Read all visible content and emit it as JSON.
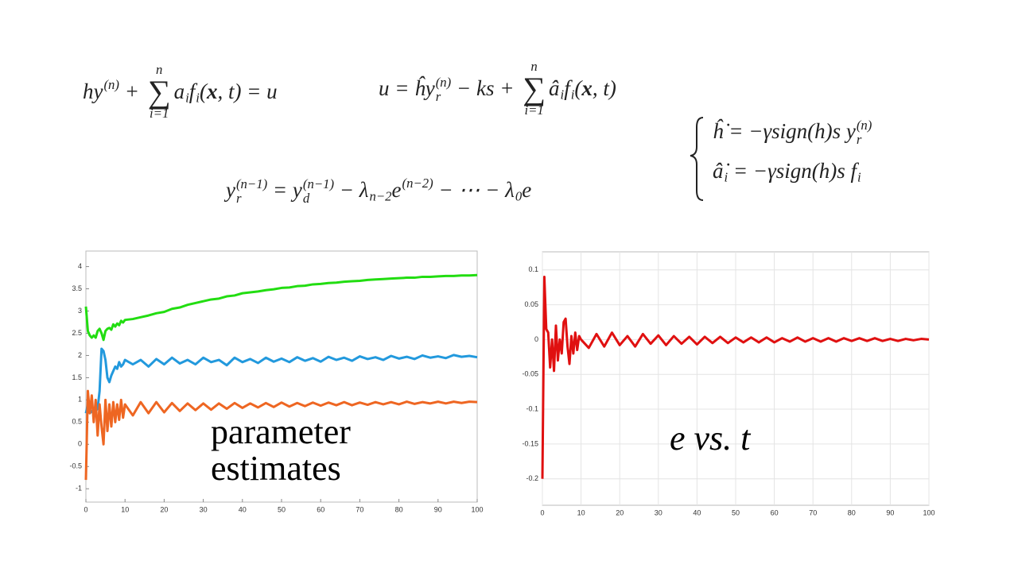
{
  "equations": [
    {
      "parts": [
        "hy",
        {
          "sup": "(n)"
        },
        " + ",
        {
          "sum": "∑",
          "above": "n",
          "below": "i=1"
        },
        "a",
        {
          "sub": "i"
        },
        "f",
        {
          "sub": "i"
        },
        "(",
        {
          "b": "x"
        },
        ", t) = u"
      ]
    },
    {
      "parts": [
        "u = ĥy",
        {
          "sup": "(n)",
          "sub": "r"
        },
        " − ks + ",
        {
          "sum": "∑",
          "above": "n",
          "below": "i=1"
        },
        "â",
        {
          "sub": "i"
        },
        "f",
        {
          "sub": "i"
        },
        "(",
        {
          "b": "x"
        },
        ", t)"
      ]
    },
    {
      "parts": [
        "y",
        {
          "sup": "(n−1)",
          "sub": "r"
        },
        " = y",
        {
          "sup": "(n−1)",
          "sub": "d"
        },
        " − λ",
        {
          "sub": "n−2"
        },
        "e",
        {
          "sup": "(n−2)"
        },
        " − ⋯ − λ",
        {
          "sub": "0"
        },
        "e"
      ]
    },
    {
      "parts": [
        "ĥ̇ = −γsign(h)s y",
        {
          "sup": "(n)",
          "sub": "r"
        }
      ]
    },
    {
      "parts": [
        "â̇",
        {
          "sub": "i"
        },
        " = −γsign(h)s f",
        {
          "sub": "i"
        }
      ]
    }
  ],
  "chart_data": [
    {
      "type": "line",
      "annotation": [
        "parameter",
        "estimates"
      ],
      "grid": false,
      "xlim": [
        0,
        100
      ],
      "xticks": [
        0,
        10,
        20,
        30,
        40,
        50,
        60,
        70,
        80,
        90,
        100
      ],
      "ylim": [
        -1.3,
        4.35
      ],
      "yticks": [
        -1,
        -0.5,
        0,
        0.5,
        1,
        1.5,
        2,
        2.5,
        3,
        3.5,
        4
      ],
      "x": [
        0,
        0.5,
        1,
        1.5,
        2,
        2.5,
        3,
        3.5,
        4,
        4.5,
        5,
        5.5,
        6,
        6.5,
        7,
        7.5,
        8,
        8.5,
        9,
        9.5,
        10,
        12,
        14,
        16,
        18,
        20,
        22,
        24,
        26,
        28,
        30,
        32,
        34,
        36,
        38,
        40,
        42,
        44,
        46,
        48,
        50,
        52,
        54,
        56,
        58,
        60,
        62,
        64,
        66,
        68,
        70,
        72,
        74,
        76,
        78,
        80,
        82,
        84,
        86,
        88,
        90,
        92,
        94,
        96,
        98,
        100
      ],
      "series": [
        {
          "color": "#22dd11",
          "values": [
            3.1,
            2.55,
            2.45,
            2.4,
            2.45,
            2.4,
            2.55,
            2.6,
            2.5,
            2.35,
            2.55,
            2.6,
            2.62,
            2.58,
            2.7,
            2.65,
            2.72,
            2.68,
            2.78,
            2.74,
            2.8,
            2.82,
            2.86,
            2.9,
            2.95,
            2.98,
            3.05,
            3.08,
            3.14,
            3.18,
            3.22,
            3.26,
            3.28,
            3.33,
            3.35,
            3.4,
            3.42,
            3.44,
            3.47,
            3.49,
            3.52,
            3.53,
            3.56,
            3.57,
            3.6,
            3.61,
            3.63,
            3.64,
            3.66,
            3.67,
            3.68,
            3.7,
            3.71,
            3.72,
            3.73,
            3.74,
            3.75,
            3.75,
            3.77,
            3.77,
            3.78,
            3.79,
            3.79,
            3.8,
            3.8,
            3.81
          ]
        },
        {
          "color": "#2299dd",
          "values": [
            0.7,
            0.9,
            0.7,
            0.75,
            0.7,
            0.75,
            0.8,
            1.2,
            2.15,
            2.1,
            1.9,
            1.5,
            1.4,
            1.55,
            1.65,
            1.75,
            1.7,
            1.85,
            1.75,
            1.8,
            1.9,
            1.8,
            1.9,
            1.75,
            1.92,
            1.8,
            1.95,
            1.82,
            1.9,
            1.8,
            1.95,
            1.85,
            1.9,
            1.78,
            1.95,
            1.85,
            1.92,
            1.83,
            1.95,
            1.86,
            1.93,
            1.85,
            1.96,
            1.88,
            1.94,
            1.86,
            1.97,
            1.9,
            1.95,
            1.88,
            1.98,
            1.92,
            1.96,
            1.9,
            1.99,
            1.93,
            1.97,
            1.92,
            2.0,
            1.95,
            1.98,
            1.94,
            2.01,
            1.97,
            1.99,
            1.96
          ]
        },
        {
          "color": "#ee6622",
          "values": [
            -0.8,
            1.2,
            0.7,
            1.1,
            0.5,
            1.0,
            0.2,
            0.9,
            0.4,
            0.0,
            1.0,
            0.3,
            0.9,
            0.4,
            0.95,
            0.5,
            0.9,
            0.55,
            1.0,
            0.6,
            0.9,
            0.65,
            0.95,
            0.7,
            0.95,
            0.72,
            0.93,
            0.75,
            0.92,
            0.77,
            0.92,
            0.78,
            0.92,
            0.8,
            0.93,
            0.82,
            0.92,
            0.83,
            0.93,
            0.84,
            0.94,
            0.85,
            0.93,
            0.86,
            0.94,
            0.87,
            0.94,
            0.88,
            0.95,
            0.88,
            0.94,
            0.89,
            0.95,
            0.9,
            0.95,
            0.9,
            0.96,
            0.91,
            0.95,
            0.92,
            0.96,
            0.92,
            0.96,
            0.93,
            0.96,
            0.95
          ]
        }
      ]
    },
    {
      "type": "line",
      "annotation": [
        "e vs. t"
      ],
      "grid": true,
      "xlim": [
        0,
        100
      ],
      "xticks": [
        0,
        10,
        20,
        30,
        40,
        50,
        60,
        70,
        80,
        90,
        100
      ],
      "ylim": [
        -0.238,
        0.126
      ],
      "yticks": [
        -0.2,
        -0.15,
        -0.1,
        -0.05,
        0,
        0.05,
        0.1
      ],
      "x": [
        0,
        0.5,
        1,
        1.5,
        2,
        2.5,
        3,
        3.5,
        4,
        4.5,
        5,
        5.5,
        6,
        6.5,
        7,
        7.5,
        8,
        8.5,
        9,
        9.5,
        10,
        12,
        14,
        16,
        18,
        20,
        22,
        24,
        26,
        28,
        30,
        32,
        34,
        36,
        38,
        40,
        42,
        44,
        46,
        48,
        50,
        52,
        54,
        56,
        58,
        60,
        62,
        64,
        66,
        68,
        70,
        72,
        74,
        76,
        78,
        80,
        82,
        84,
        86,
        88,
        90,
        92,
        94,
        96,
        98,
        100
      ],
      "series": [
        {
          "color": "#e01010",
          "values": [
            -0.2,
            0.09,
            0.015,
            0.01,
            -0.04,
            0.0,
            -0.045,
            0.02,
            -0.03,
            0.0,
            -0.02,
            0.025,
            0.03,
            -0.01,
            -0.035,
            0.005,
            -0.02,
            0.01,
            -0.015,
            0.005,
            0.0,
            -0.012,
            0.008,
            -0.01,
            0.01,
            -0.008,
            0.005,
            -0.01,
            0.008,
            -0.006,
            0.006,
            -0.008,
            0.005,
            -0.006,
            0.004,
            -0.007,
            0.004,
            -0.005,
            0.004,
            -0.005,
            0.003,
            -0.004,
            0.003,
            -0.004,
            0.003,
            -0.004,
            0.002,
            -0.003,
            0.003,
            -0.003,
            0.002,
            -0.003,
            0.002,
            -0.003,
            0.002,
            -0.002,
            0.002,
            -0.002,
            0.002,
            -0.002,
            0.001,
            -0.002,
            0.001,
            -0.001,
            0.001,
            0.0
          ]
        }
      ]
    }
  ]
}
